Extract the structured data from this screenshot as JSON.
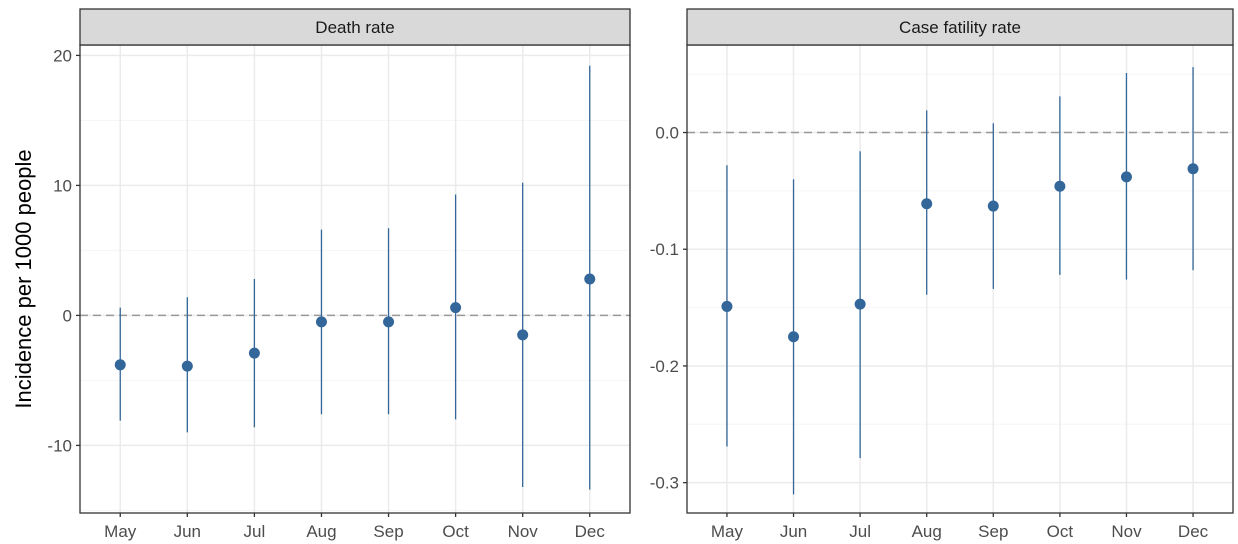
{
  "figure": {
    "ylabel": "Incidence per 1000 people"
  },
  "colors": {
    "point": "#336699",
    "errorbar": "#336699",
    "panel_border": "#333333",
    "strip_fill": "#d9d9d9",
    "grid_major": "#ebebeb",
    "grid_minor": "#f5f5f5",
    "zero_line": "#999999",
    "axis_text": "#4d4d4d"
  },
  "chart_data": [
    {
      "type": "scatter",
      "title": "Death rate",
      "categories": [
        "May",
        "Jun",
        "Jul",
        "Aug",
        "Sep",
        "Oct",
        "Nov",
        "Dec"
      ],
      "values": [
        -3.8,
        -3.9,
        -2.9,
        -0.5,
        -0.5,
        0.6,
        -1.5,
        2.8
      ],
      "lower": [
        -8.1,
        -9.0,
        -8.6,
        -7.6,
        -7.6,
        -8.0,
        -13.2,
        -13.4
      ],
      "upper": [
        0.6,
        1.4,
        2.8,
        6.6,
        6.7,
        9.3,
        10.2,
        19.2
      ],
      "ylim": [
        -15.2,
        20.8
      ],
      "yticks": [
        -10,
        0,
        10,
        20
      ],
      "ytick_labels": [
        "-10",
        "0",
        "10",
        "20"
      ],
      "reference_line": 0,
      "grid": true
    },
    {
      "type": "scatter",
      "title": "Case fatility rate",
      "categories": [
        "May",
        "Jun",
        "Jul",
        "Aug",
        "Sep",
        "Oct",
        "Nov",
        "Dec"
      ],
      "values": [
        -0.149,
        -0.175,
        -0.147,
        -0.061,
        -0.063,
        -0.046,
        -0.038,
        -0.031
      ],
      "lower": [
        -0.269,
        -0.31,
        -0.279,
        -0.139,
        -0.134,
        -0.122,
        -0.126,
        -0.118
      ],
      "upper": [
        -0.028,
        -0.04,
        -0.016,
        0.019,
        0.008,
        0.031,
        0.051,
        0.056
      ],
      "ylim": [
        -0.326,
        0.075
      ],
      "yticks": [
        -0.3,
        -0.2,
        -0.1,
        0.0
      ],
      "ytick_labels": [
        "-0.3",
        "-0.2",
        "-0.1",
        "0.0"
      ],
      "reference_line": 0,
      "grid": true
    }
  ]
}
